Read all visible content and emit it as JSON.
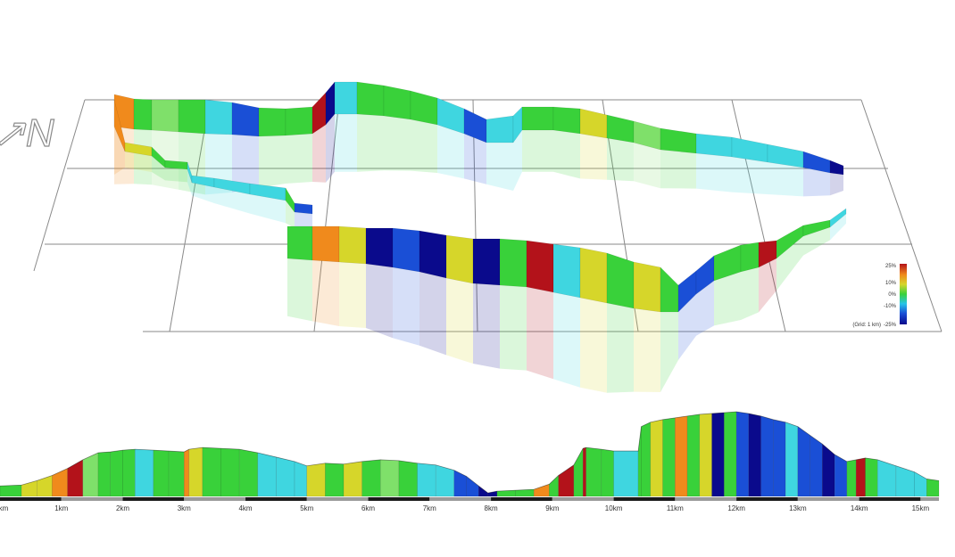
{
  "compass_glyph": "↗N",
  "colors": {
    "background": "#ffffff",
    "grid": "#8a8a8a",
    "axis_bar": "#1a1a1a",
    "axis_bar_alt": "#9a9a9a",
    "grade_scale": [
      "#0a0a8c",
      "#1a4fd6",
      "#27c4e8",
      "#39d13a",
      "#d6d62a",
      "#f08a1c",
      "#b3121a"
    ]
  },
  "legend": {
    "ticks": [
      "25%",
      "10%",
      "0%",
      "-10%",
      "-25%"
    ],
    "note": "(Grid: 1 km)"
  },
  "chart_data": [
    {
      "type": "area",
      "title": "",
      "xlabel": "",
      "ylabel": "",
      "x_unit": "km",
      "xlim": [
        0,
        15.3
      ],
      "x_ticks": [
        "km",
        "1km",
        "2km",
        "3km",
        "4km",
        "5km",
        "6km",
        "7km",
        "8km",
        "9km",
        "10km",
        "11km",
        "12km",
        "13km",
        "14km",
        "15km"
      ],
      "grid": false,
      "profile": {
        "x": [
          0,
          0.35,
          0.6,
          0.85,
          1.1,
          1.35,
          1.6,
          1.8,
          2.0,
          2.2,
          2.5,
          2.75,
          3.0,
          3.08,
          3.3,
          3.6,
          3.9,
          4.2,
          4.5,
          4.8,
          5.0,
          5.3,
          5.6,
          5.9,
          6.2,
          6.5,
          6.8,
          7.1,
          7.4,
          7.6,
          7.8,
          7.95,
          8.1,
          8.4,
          8.7,
          8.95,
          9.1,
          9.35,
          9.5,
          9.55,
          9.8,
          10.0,
          10.4,
          10.45,
          10.6,
          10.8,
          11.0,
          11.2,
          11.4,
          11.6,
          11.8,
          12.0,
          12.2,
          12.4,
          12.6,
          12.8,
          13.0,
          13.2,
          13.4,
          13.6,
          13.8,
          13.95,
          14.1,
          14.3,
          14.6,
          14.9,
          15.1,
          15.3
        ],
        "elevation": [
          12,
          13,
          18,
          24,
          32,
          42,
          50,
          51,
          53,
          54,
          53,
          52,
          51,
          54,
          56,
          55,
          54,
          50,
          45,
          40,
          35,
          38,
          37,
          40,
          42,
          41,
          38,
          36,
          30,
          23,
          12,
          4,
          6,
          7,
          8,
          14,
          24,
          36,
          55,
          56,
          54,
          52,
          52,
          80,
          85,
          88,
          90,
          92,
          94,
          95,
          96,
          97,
          95,
          92,
          88,
          85,
          80,
          70,
          60,
          48,
          40,
          42,
          44,
          42,
          35,
          28,
          20,
          18
        ],
        "grade_class": [
          "green",
          "yellow",
          "yellow",
          "orange",
          "red",
          "lightgreen",
          "green",
          "green",
          "green",
          "cyan",
          "green",
          "green",
          "orange",
          "yellow",
          "green",
          "green",
          "green",
          "cyan",
          "cyan",
          "cyan",
          "yellow",
          "green",
          "yellow",
          "green",
          "lightgreen",
          "green",
          "cyan",
          "cyan",
          "blue",
          "blue",
          "navy",
          "navy",
          "green",
          "green",
          "orange",
          "green",
          "red",
          "green",
          "red",
          "green",
          "green",
          "cyan",
          "green",
          "green",
          "yellow",
          "green",
          "orange",
          "green",
          "yellow",
          "navy",
          "green",
          "blue",
          "navy",
          "blue",
          "blue",
          "cyan",
          "blue",
          "blue",
          "navy",
          "blue",
          "green",
          "red",
          "green",
          "cyan",
          "cyan",
          "cyan",
          "green"
        ]
      }
    }
  ]
}
